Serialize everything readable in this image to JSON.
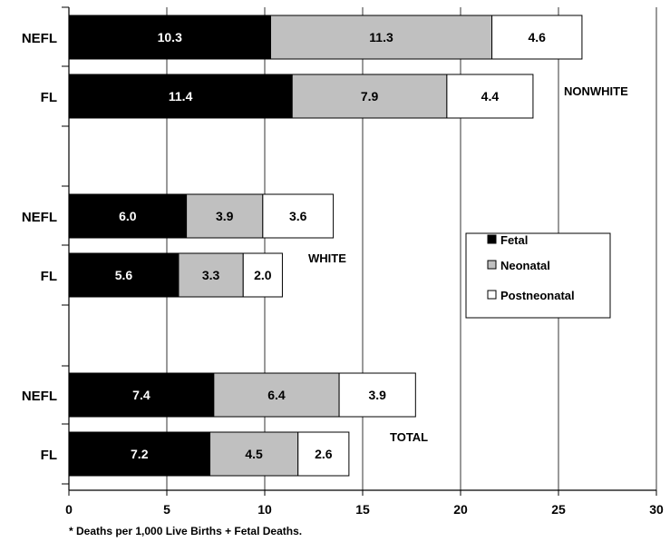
{
  "chart_data": {
    "type": "bar",
    "orientation": "horizontal",
    "stacked": true,
    "categories": [
      "NEFL",
      "FL",
      "NEFL",
      "FL",
      "NEFL",
      "FL"
    ],
    "groups": [
      {
        "label": "NONWHITE",
        "rows": [
          0,
          1
        ]
      },
      {
        "label": "WHITE",
        "rows": [
          2,
          3
        ]
      },
      {
        "label": "TOTAL",
        "rows": [
          4,
          5
        ]
      }
    ],
    "series": [
      {
        "name": "Fetal",
        "color": "#000000",
        "label_color": "#ffffff",
        "values": [
          10.3,
          11.4,
          6.0,
          5.6,
          7.4,
          7.2
        ],
        "labels": [
          "10.3",
          "11.4",
          "6.0",
          "5.6",
          "7.4",
          "7.2"
        ]
      },
      {
        "name": "Neonatal",
        "color": "#c0c0c0",
        "label_color": "#000000",
        "values": [
          11.3,
          7.9,
          3.9,
          3.3,
          6.4,
          4.5
        ],
        "labels": [
          "11.3",
          "7.9",
          "3.9",
          "3.3",
          "6.4",
          "4.5"
        ]
      },
      {
        "name": "Postneonatal",
        "color": "#ffffff",
        "label_color": "#000000",
        "values": [
          4.6,
          4.4,
          3.6,
          2.0,
          3.9,
          2.6
        ],
        "labels": [
          "4.6",
          "4.4",
          "3.6",
          "2.0",
          "3.9",
          "2.6"
        ]
      }
    ],
    "xlim": [
      0,
      30
    ],
    "xticks": [
      "0",
      "5",
      "10",
      "15",
      "20",
      "25",
      "30"
    ],
    "grid": "vertical",
    "legend_position": "right",
    "footnote": "* Deaths per 1,000 Live Births + Fetal Deaths."
  }
}
